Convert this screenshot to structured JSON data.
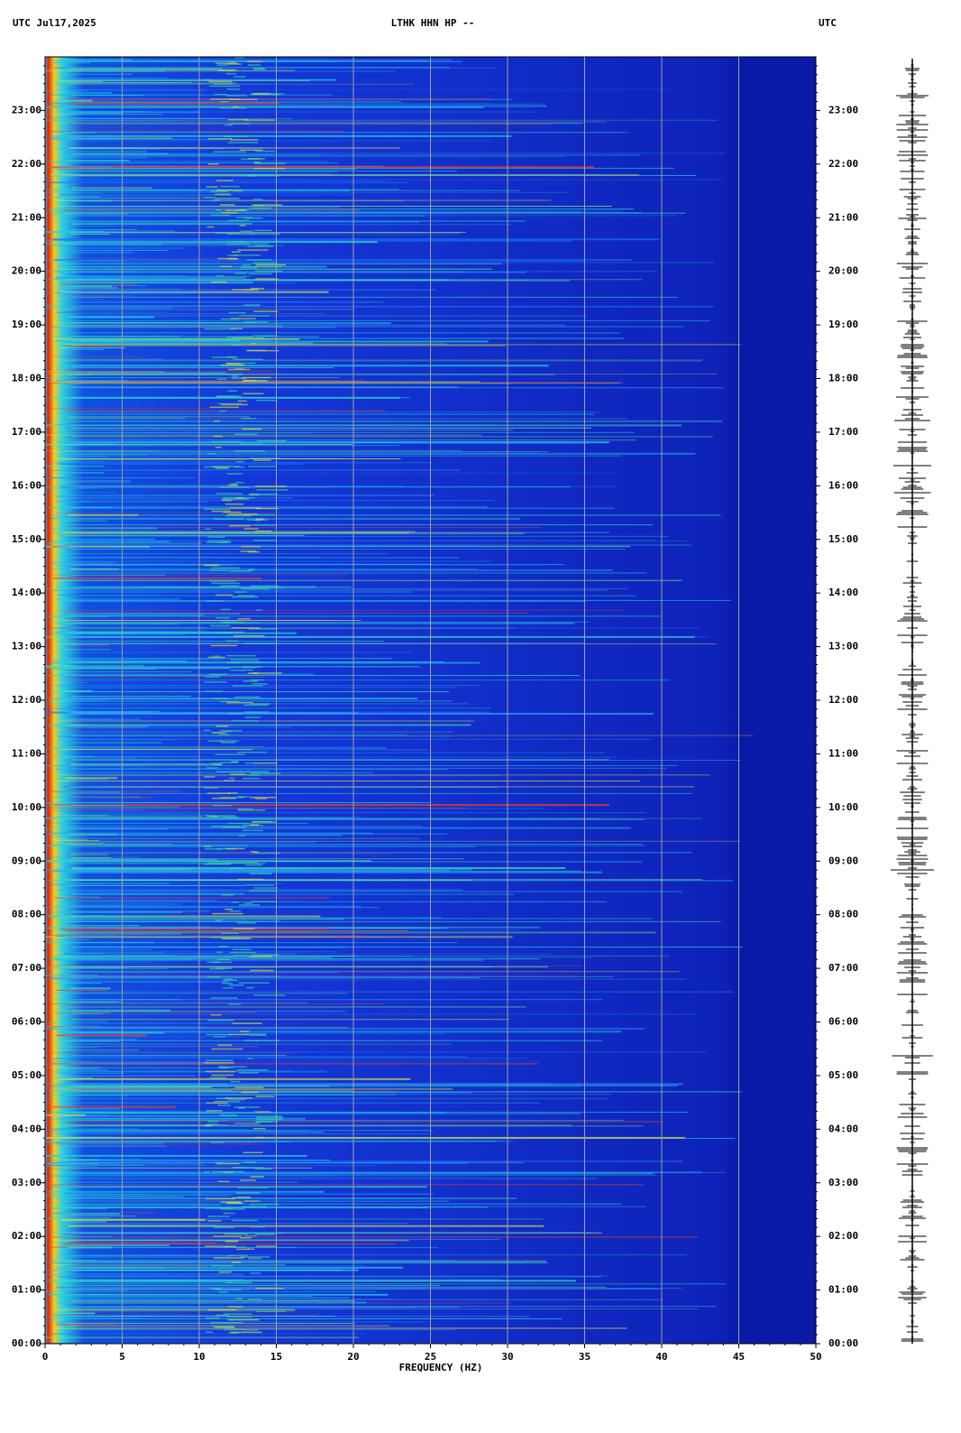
{
  "chart_data": {
    "type": "spectrogram",
    "title": "LTHK HHN HP --",
    "header_left": "UTC  Jul17,2025",
    "header_right": "UTC",
    "xlabel": "FREQUENCY (HZ)",
    "xlim": [
      0,
      50
    ],
    "xticks": [
      0,
      5,
      10,
      15,
      20,
      25,
      30,
      35,
      40,
      45,
      50
    ],
    "ylim": [
      0,
      24
    ],
    "yticks": [
      {
        "value": 0,
        "label": "00:00"
      },
      {
        "value": 1,
        "label": "01:00"
      },
      {
        "value": 2,
        "label": "02:00"
      },
      {
        "value": 3,
        "label": "03:00"
      },
      {
        "value": 4,
        "label": "04:00"
      },
      {
        "value": 5,
        "label": "05:00"
      },
      {
        "value": 6,
        "label": "06:00"
      },
      {
        "value": 7,
        "label": "07:00"
      },
      {
        "value": 8,
        "label": "08:00"
      },
      {
        "value": 9,
        "label": "09:00"
      },
      {
        "value": 10,
        "label": "10:00"
      },
      {
        "value": 11,
        "label": "11:00"
      },
      {
        "value": 12,
        "label": "12:00"
      },
      {
        "value": 13,
        "label": "13:00"
      },
      {
        "value": 14,
        "label": "14:00"
      },
      {
        "value": 15,
        "label": "15:00"
      },
      {
        "value": 16,
        "label": "16:00"
      },
      {
        "value": 17,
        "label": "17:00"
      },
      {
        "value": 18,
        "label": "18:00"
      },
      {
        "value": 19,
        "label": "19:00"
      },
      {
        "value": 20,
        "label": "20:00"
      },
      {
        "value": 21,
        "label": "21:00"
      },
      {
        "value": 22,
        "label": "22:00"
      },
      {
        "value": 23,
        "label": "23:00"
      }
    ],
    "grid": true,
    "grid_color": "#a0a0a0"
  }
}
